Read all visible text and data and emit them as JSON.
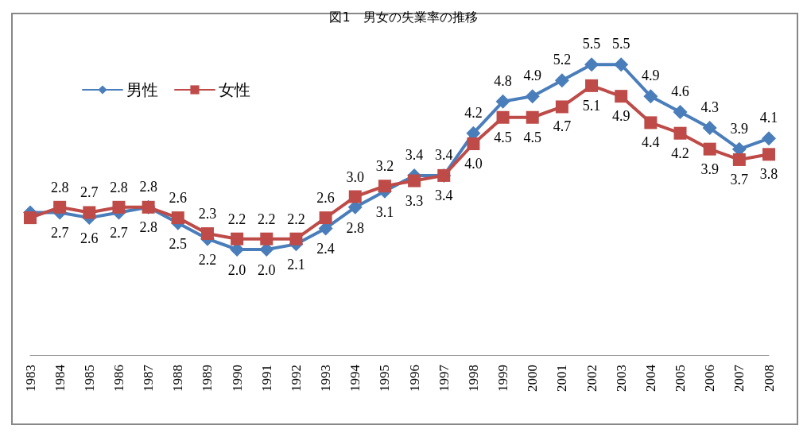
{
  "chart_data": {
    "type": "line",
    "title": "図1　男女の失業率の推移",
    "categories": [
      "1983",
      "1984",
      "1985",
      "1986",
      "1987",
      "1988",
      "1989",
      "1990",
      "1991",
      "1992",
      "1993",
      "1994",
      "1995",
      "1996",
      "1997",
      "1998",
      "1999",
      "2000",
      "2001",
      "2002",
      "2003",
      "2004",
      "2005",
      "2006",
      "2007",
      "2008"
    ],
    "series": [
      {
        "name": "男性",
        "color": "#4a7ebb",
        "marker": "diamond",
        "values": [
          2.7,
          2.7,
          2.6,
          2.7,
          2.8,
          2.5,
          2.2,
          2.0,
          2.0,
          2.1,
          2.4,
          2.8,
          3.1,
          3.4,
          3.4,
          4.2,
          4.8,
          4.9,
          5.2,
          5.5,
          5.5,
          4.9,
          4.6,
          4.3,
          3.9,
          4.1
        ],
        "value_labels": [
          null,
          "2.7",
          "2.6",
          "2.7",
          "2.8",
          "2.5",
          "2.2",
          "2.0",
          "2.0",
          "2.1",
          "2.4",
          "2.8",
          "3.1",
          "3.4",
          "3.4",
          "4.2",
          "4.8",
          "4.9",
          "5.2",
          "5.5",
          "5.5",
          "4.9",
          "4.6",
          "4.3",
          "3.9",
          "4.1"
        ]
      },
      {
        "name": "女性",
        "color": "#be4b48",
        "marker": "square",
        "values": [
          2.6,
          2.8,
          2.7,
          2.8,
          2.8,
          2.6,
          2.3,
          2.2,
          2.2,
          2.2,
          2.6,
          3.0,
          3.2,
          3.3,
          3.4,
          4.0,
          4.5,
          4.5,
          4.7,
          5.1,
          4.9,
          4.4,
          4.2,
          3.9,
          3.7,
          3.8
        ],
        "value_labels": [
          null,
          "2.8",
          "2.7",
          "2.8",
          "2.8",
          "2.6",
          "2.3",
          "2.2",
          "2.2",
          "2.2",
          "2.6",
          "3.0",
          "3.2",
          "3.3",
          "3.4",
          "4.0",
          "4.5",
          "4.5",
          "4.7",
          "5.1",
          "4.9",
          "4.4",
          "4.2",
          "3.9",
          "3.7",
          "3.8"
        ]
      }
    ],
    "grid": false,
    "legend": "top left",
    "line_style": "solid"
  }
}
